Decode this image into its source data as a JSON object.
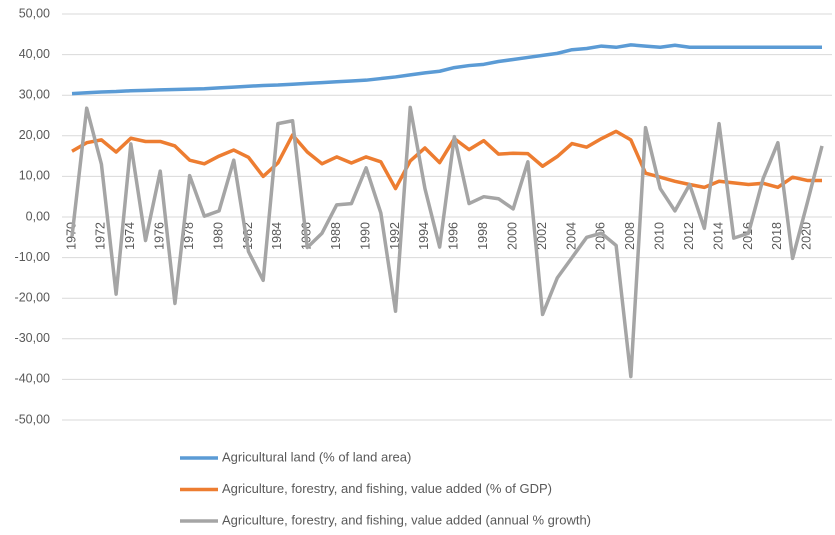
{
  "chart_data": {
    "type": "line",
    "categories": [
      "1970",
      null,
      "1972",
      null,
      "1974",
      null,
      "1976",
      null,
      "1978",
      null,
      "1980",
      null,
      "1982",
      null,
      "1984",
      null,
      "1986",
      null,
      "1988",
      null,
      "1990",
      null,
      "1992",
      null,
      "1994",
      null,
      "1996",
      null,
      "1998",
      null,
      "2000",
      null,
      "2002",
      null,
      "2004",
      null,
      "2006",
      null,
      "2008",
      null,
      "2010",
      null,
      "2012",
      null,
      "2014",
      null,
      "2016",
      null,
      "2018",
      null,
      "2020",
      null
    ],
    "series": [
      {
        "name": "Agricultural land (% of land area)",
        "color": "#5b9bd5",
        "values": [
          30.4,
          30.6,
          30.8,
          30.9,
          31.1,
          31.2,
          31.3,
          31.4,
          31.5,
          31.6,
          31.8,
          32.0,
          32.2,
          32.4,
          32.5,
          32.7,
          32.9,
          33.1,
          33.3,
          33.5,
          33.7,
          34.1,
          34.5,
          35.0,
          35.5,
          35.9,
          36.8,
          37.3,
          37.6,
          38.3,
          38.8,
          39.3,
          39.8,
          40.3,
          41.2,
          41.5,
          42.1,
          41.8,
          42.4,
          42.1,
          41.8,
          42.3,
          41.8,
          41.8,
          41.8,
          41.8,
          41.8,
          41.8,
          41.8,
          41.8,
          41.8,
          41.8
        ]
      },
      {
        "name": "Agriculture, forestry, and fishing, value added (% of GDP)",
        "color": "#ed7d31",
        "values": [
          16.2,
          18.3,
          19.0,
          16.0,
          19.4,
          18.6,
          18.6,
          17.5,
          14.0,
          13.1,
          15.0,
          16.5,
          14.7,
          10.0,
          13.3,
          20.2,
          16.0,
          13.1,
          14.8,
          13.3,
          14.8,
          13.6,
          7.0,
          13.8,
          17.0,
          13.4,
          19.3,
          16.6,
          18.8,
          15.5,
          15.7,
          15.6,
          12.5,
          14.9,
          18.1,
          17.2,
          19.3,
          21.1,
          19.0,
          10.8,
          9.8,
          8.8,
          8.0,
          7.3,
          8.8,
          8.4,
          8.0,
          8.3,
          7.3,
          9.8,
          9.0,
          9.0
        ]
      },
      {
        "name": "Agriculture, forestry, and fishing, value added (annual % growth)",
        "color": "#a5a5a5",
        "values": [
          -4.8,
          26.8,
          13.0,
          -19.0,
          18.0,
          -5.8,
          11.3,
          -21.3,
          10.2,
          0.2,
          1.5,
          14.0,
          -8.5,
          -15.6,
          23.0,
          23.7,
          -7.5,
          -4.0,
          3.0,
          3.3,
          12.1,
          1.0,
          -23.2,
          27.0,
          7.0,
          -7.4,
          19.8,
          3.3,
          5.0,
          4.5,
          2.0,
          13.6,
          -24.0,
          -15.0,
          -10.0,
          -5.0,
          -4.0,
          -7.0,
          -39.3,
          22.0,
          7.0,
          1.5,
          8.0,
          -2.8,
          23.0,
          -5.2,
          -4.0,
          9.5,
          18.3,
          -10.2,
          3.5,
          17.5
        ]
      }
    ],
    "ylim": [
      -50,
      50
    ],
    "yticks": [
      {
        "value": -50,
        "label": "-50,00"
      },
      {
        "value": -40,
        "label": "-40,00"
      },
      {
        "value": -30,
        "label": "-30,00"
      },
      {
        "value": -20,
        "label": "-20,00"
      },
      {
        "value": -10,
        "label": "-10,00"
      },
      {
        "value": 0,
        "label": "0,00"
      },
      {
        "value": 10,
        "label": "10,00"
      },
      {
        "value": 20,
        "label": "20,00"
      },
      {
        "value": 30,
        "label": "30,00"
      },
      {
        "value": 40,
        "label": "40,00"
      },
      {
        "value": 50,
        "label": "50,00"
      }
    ],
    "grid": true
  }
}
